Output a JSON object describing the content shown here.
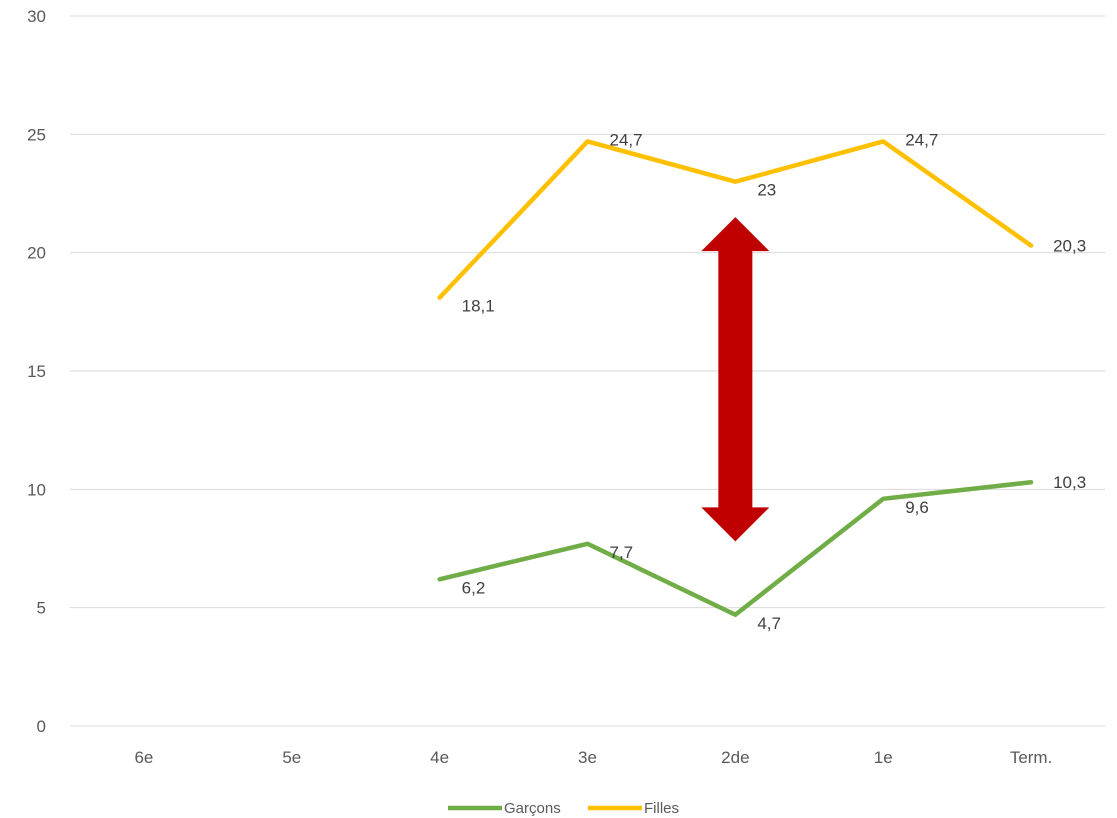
{
  "chart_data": {
    "type": "line",
    "title": "",
    "xlabel": "",
    "ylabel": "",
    "categories": [
      "6e",
      "5e",
      "4e",
      "3e",
      "2de",
      "1e",
      "Term."
    ],
    "ylim": [
      0,
      30
    ],
    "yticks": [
      0,
      5,
      10,
      15,
      20,
      25,
      30
    ],
    "grid": true,
    "legend_position": "bottom",
    "series": [
      {
        "name": "Garçons",
        "color": "#70AD47",
        "values": [
          null,
          null,
          6.2,
          7.7,
          4.7,
          9.6,
          10.3
        ],
        "labels": [
          "",
          "",
          "6,2",
          "7,7",
          "4,7",
          "9,6",
          "10,3"
        ]
      },
      {
        "name": "Filles",
        "color": "#FFC000",
        "values": [
          null,
          null,
          18.1,
          24.7,
          23,
          24.7,
          20.3
        ],
        "labels": [
          "",
          "",
          "18,1",
          "24,7",
          "23",
          "24,7",
          "20,3"
        ]
      }
    ],
    "annotation": {
      "type": "double-arrow",
      "color": "#C00000",
      "category": "2de",
      "from": 7.8,
      "to": 21.5
    }
  }
}
